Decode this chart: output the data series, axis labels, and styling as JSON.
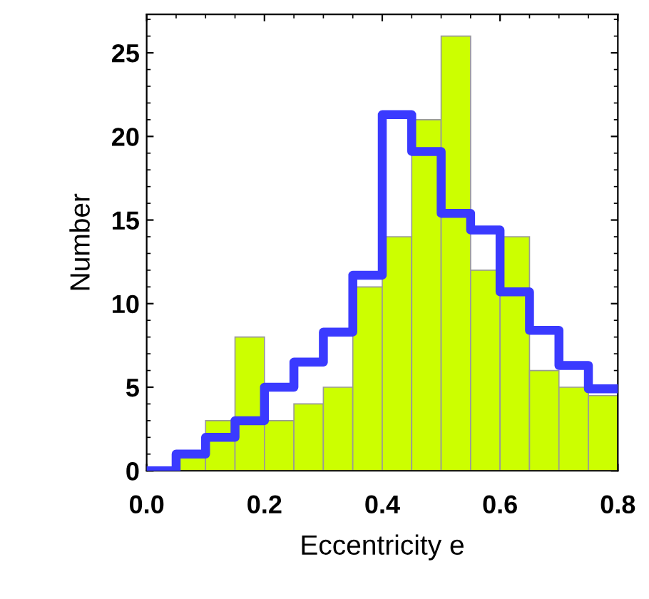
{
  "chart_data": {
    "type": "histogram",
    "xlabel": "Eccentricity e",
    "ylabel": "Number",
    "bins": [
      0,
      0.05,
      0.1,
      0.15,
      0.2,
      0.25,
      0.3,
      0.35,
      0.4,
      0.45,
      0.5,
      0.55,
      0.6,
      0.65,
      0.7,
      0.75,
      0.8
    ],
    "series": [
      {
        "color": "#ccff00",
        "values": [
          0,
          1,
          3,
          8,
          3,
          4,
          5,
          11,
          14,
          21,
          26,
          12,
          14,
          6,
          5,
          4.5
        ]
      },
      {
        "type": "step",
        "color": "#3a3aff",
        "x": [
          0,
          0.05,
          0.1,
          0.15,
          0.2,
          0.25,
          0.3,
          0.35,
          0.4,
          0.45,
          0.5,
          0.55,
          0.6,
          0.65,
          0.7,
          0.75,
          0.8
        ],
        "values": [
          0,
          1,
          2,
          3,
          5,
          6.5,
          8.3,
          11.7,
          21.3,
          19.1,
          15.4,
          14.4,
          10.7,
          8.4,
          6.3,
          4.9,
          4.9
        ]
      }
    ],
    "xlim": [
      0,
      0.8
    ],
    "ylim": [
      0,
      27.3
    ],
    "xticks": [
      {
        "value": 0,
        "label": "0.0"
      },
      0.2,
      0.4,
      0.6,
      0.8
    ],
    "yticks": [
      0,
      5,
      10,
      15,
      20,
      25
    ],
    "grid": false,
    "legend": false
  }
}
